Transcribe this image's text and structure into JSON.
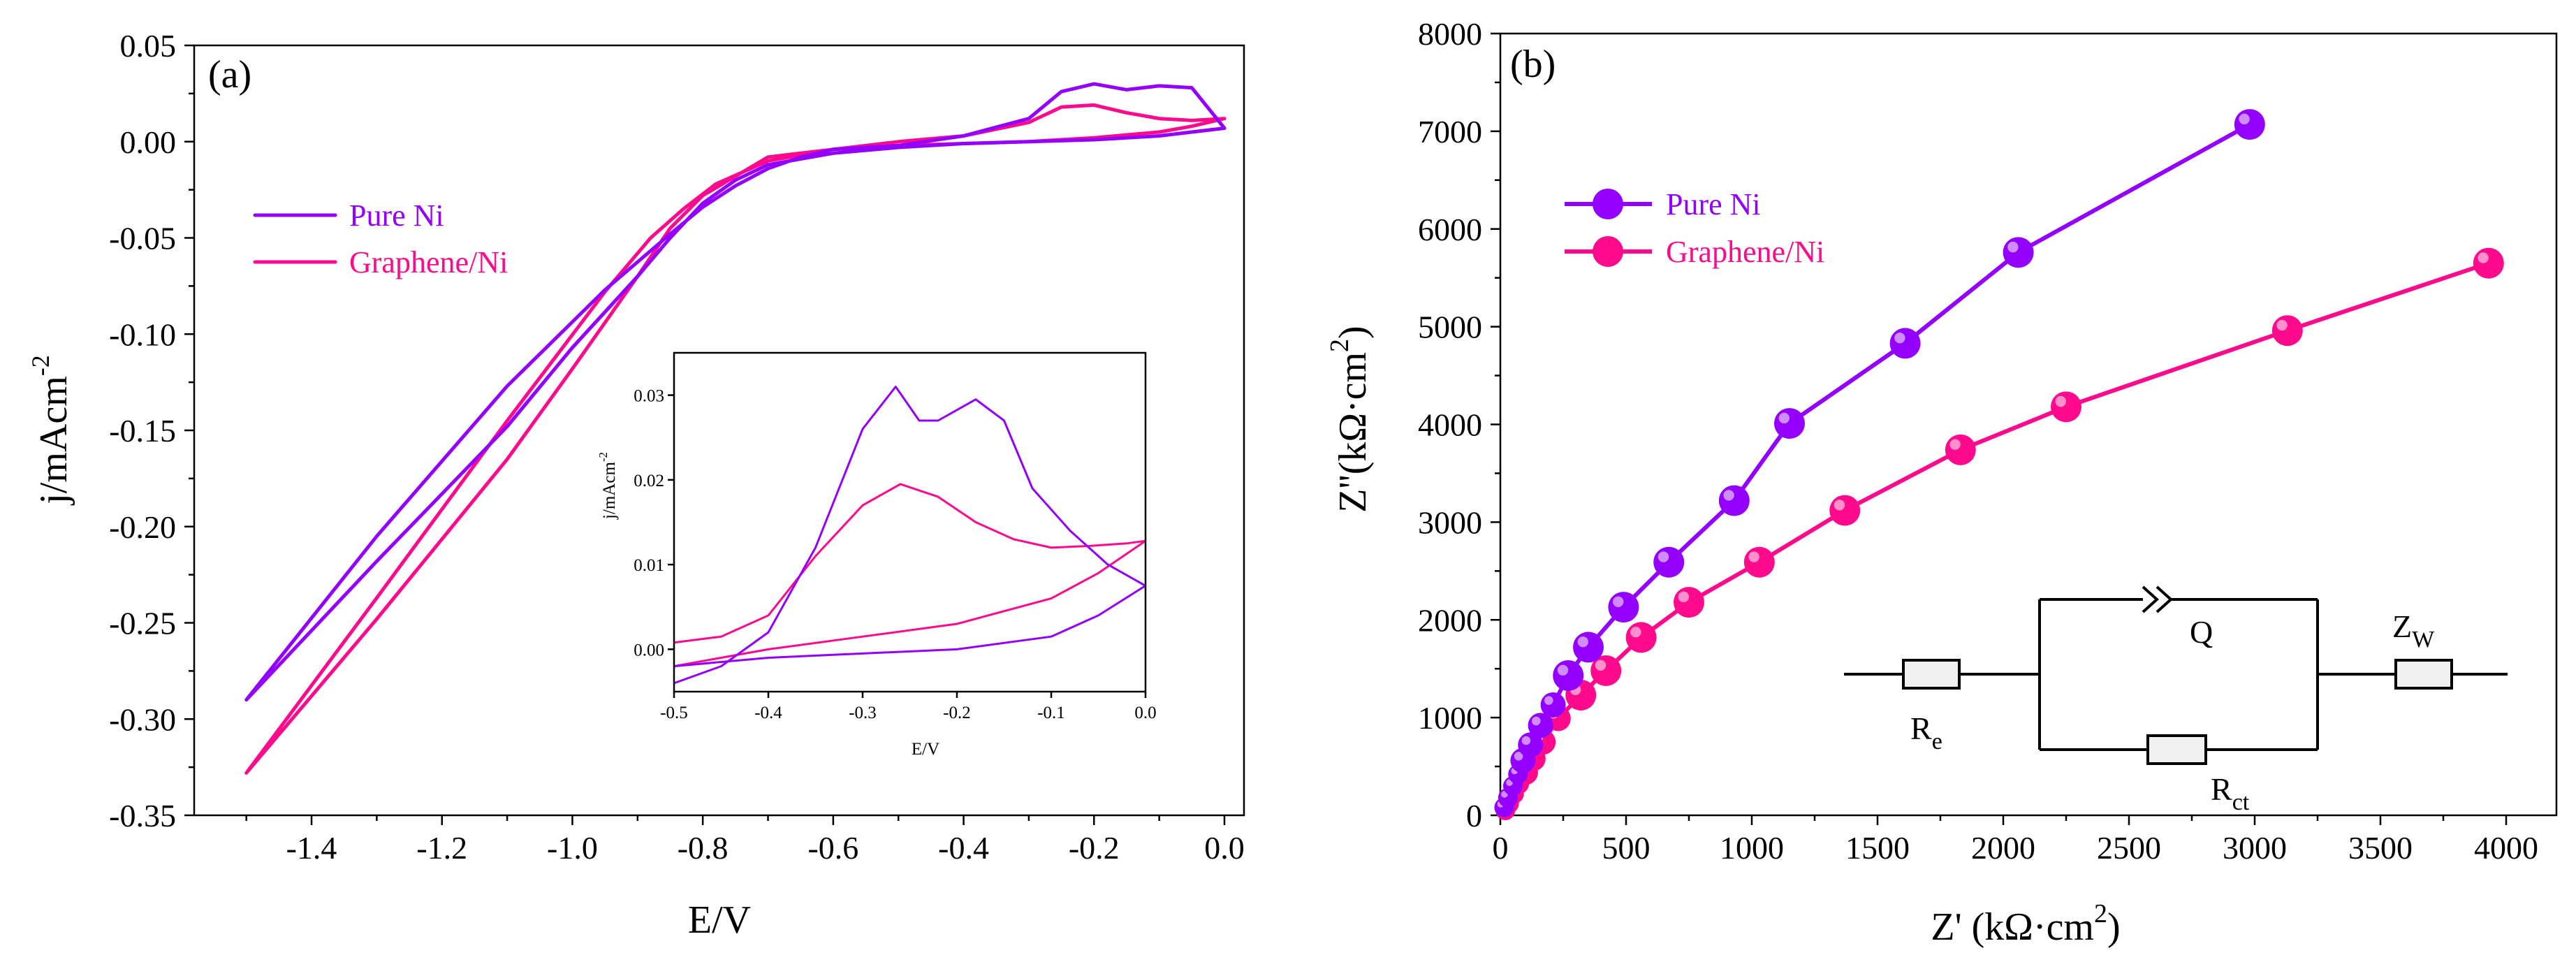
{
  "colors": {
    "pure_ni": "#9400ff",
    "graphene_ni": "#ff0a8c",
    "text": "#000000"
  },
  "chart_data": [
    {
      "panel_label": "(a)",
      "type": "line",
      "title": "",
      "xlabel": "E/V",
      "ylabel": "j/mAcm",
      "ylabel_exp": "-2",
      "xlim": [
        -1.58,
        0.03
      ],
      "ylim": [
        -0.35,
        0.05
      ],
      "xticks": [
        -1.4,
        -1.2,
        -1.0,
        -0.8,
        -0.6,
        -0.4,
        -0.2,
        0.0
      ],
      "xtick_labels": [
        "-1.4",
        "-1.2",
        "-1.0",
        "-0.8",
        "-0.6",
        "-0.4",
        "-0.2",
        "0.0"
      ],
      "yticks": [
        0.05,
        0.0,
        -0.05,
        -0.1,
        -0.15,
        -0.2,
        -0.25,
        -0.3,
        -0.35
      ],
      "ytick_labels": [
        "0.05",
        "0.00",
        "-0.05",
        "-0.10",
        "-0.15",
        "-0.20",
        "-0.25",
        "-0.30",
        "-0.35"
      ],
      "legend": [
        "Pure Ni",
        "Graphene/Ni"
      ],
      "legend_position": "upper-left",
      "series": [
        {
          "name": "Pure Ni",
          "color": "#9400ff",
          "x": [
            -1.5,
            -1.3,
            -1.1,
            -0.95,
            -0.85,
            -0.8,
            -0.75,
            -0.7,
            -0.65,
            -0.6,
            -0.5,
            -0.4,
            -0.3,
            -0.25,
            -0.2,
            -0.15,
            -0.1,
            -0.05,
            0.0,
            -0.05,
            -0.1,
            -0.2,
            -0.3,
            -0.4,
            -0.5,
            -0.6,
            -0.7,
            -0.75,
            -0.8,
            -0.85,
            -0.9,
            -1.0,
            -1.1,
            -1.3,
            -1.5
          ],
          "y": [
            -0.29,
            -0.205,
            -0.127,
            -0.077,
            -0.048,
            -0.034,
            -0.023,
            -0.014,
            -0.008,
            -0.004,
            -0.002,
            0.003,
            0.012,
            0.026,
            0.03,
            0.027,
            0.029,
            0.028,
            0.007,
            0.005,
            0.003,
            0.001,
            0.0,
            -0.001,
            -0.003,
            -0.006,
            -0.012,
            -0.02,
            -0.032,
            -0.05,
            -0.07,
            -0.107,
            -0.148,
            -0.218,
            -0.29
          ]
        },
        {
          "name": "Graphene/Ni",
          "color": "#ff0a8c",
          "x": [
            -1.5,
            -1.3,
            -1.1,
            -0.95,
            -0.88,
            -0.83,
            -0.78,
            -0.7,
            -0.6,
            -0.5,
            -0.4,
            -0.3,
            -0.25,
            -0.2,
            -0.15,
            -0.1,
            -0.05,
            0.0,
            -0.05,
            -0.1,
            -0.2,
            -0.3,
            -0.4,
            -0.5,
            -0.6,
            -0.7,
            -0.8,
            -0.85,
            -0.9,
            -1.0,
            -1.1,
            -1.3,
            -1.5
          ],
          "y": [
            -0.328,
            -0.237,
            -0.145,
            -0.078,
            -0.05,
            -0.035,
            -0.022,
            -0.01,
            -0.004,
            0.0,
            0.003,
            0.01,
            0.018,
            0.019,
            0.015,
            0.012,
            0.011,
            0.012,
            0.008,
            0.005,
            0.002,
            0.0,
            -0.001,
            -0.002,
            -0.004,
            -0.008,
            -0.028,
            -0.045,
            -0.07,
            -0.118,
            -0.165,
            -0.248,
            -0.328
          ]
        }
      ],
      "inset": {
        "xlabel": "E/V",
        "ylabel": "j/mAcm",
        "ylabel_exp": "-2",
        "xlim": [
          -0.5,
          0.0
        ],
        "ylim": [
          -0.005,
          0.035
        ],
        "xticks": [
          -0.5,
          -0.4,
          -0.3,
          -0.2,
          -0.1,
          0.0
        ],
        "xtick_labels": [
          "-0.5",
          "-0.4",
          "-0.3",
          "-0.2",
          "-0.1",
          "0.0"
        ],
        "yticks": [
          0.0,
          0.01,
          0.02,
          0.03
        ],
        "ytick_labels": [
          "0.00",
          "0.01",
          "0.02",
          "0.03"
        ],
        "series": [
          {
            "name": "Pure Ni",
            "color": "#9400ff",
            "x": [
              -0.5,
              -0.45,
              -0.4,
              -0.35,
              -0.3,
              -0.265,
              -0.24,
              -0.22,
              -0.18,
              -0.15,
              -0.12,
              -0.08,
              -0.04,
              0.0,
              -0.05,
              -0.1,
              -0.2,
              -0.3,
              -0.4,
              -0.5
            ],
            "y": [
              -0.004,
              -0.002,
              0.002,
              0.012,
              0.026,
              0.031,
              0.027,
              0.027,
              0.0295,
              0.027,
              0.019,
              0.014,
              0.01,
              0.0075,
              0.004,
              0.0015,
              0.0,
              -0.0005,
              -0.001,
              -0.002
            ]
          },
          {
            "name": "Graphene/Ni",
            "color": "#ff0a8c",
            "x": [
              -0.5,
              -0.45,
              -0.4,
              -0.35,
              -0.3,
              -0.26,
              -0.22,
              -0.18,
              -0.14,
              -0.1,
              -0.06,
              -0.02,
              0.0,
              -0.05,
              -0.1,
              -0.2,
              -0.3,
              -0.4,
              -0.5
            ],
            "y": [
              0.0008,
              0.0015,
              0.004,
              0.011,
              0.017,
              0.0195,
              0.018,
              0.015,
              0.013,
              0.012,
              0.0122,
              0.0125,
              0.0128,
              0.009,
              0.006,
              0.003,
              0.0015,
              0.0,
              -0.002
            ]
          }
        ]
      }
    },
    {
      "panel_label": "(b)",
      "type": "scatter",
      "title": "",
      "xlabel": "Z' (kΩ·cm",
      "xlabel_exp": "2",
      "xlabel_end": ")",
      "ylabel": "Z''(kΩ·cm",
      "ylabel_exp": "2",
      "ylabel_end": ")",
      "xlim": [
        0,
        4200
      ],
      "ylim": [
        0,
        8000
      ],
      "xticks": [
        0,
        500,
        1000,
        1500,
        2000,
        2500,
        3000,
        3500,
        4000
      ],
      "xtick_labels": [
        "0",
        "500",
        "1000",
        "1500",
        "2000",
        "2500",
        "3000",
        "3500",
        "4000"
      ],
      "yticks": [
        0,
        1000,
        2000,
        3000,
        4000,
        5000,
        6000,
        7000,
        8000
      ],
      "ytick_labels": [
        "0",
        "1000",
        "2000",
        "3000",
        "4000",
        "5000",
        "6000",
        "7000",
        "8000"
      ],
      "legend": [
        "Pure Ni",
        "Graphene/Ni"
      ],
      "legend_position": "upper-left",
      "series": [
        {
          "name": "Pure Ni",
          "color": "#9400ff",
          "x": [
            15,
            30,
            50,
            70,
            90,
            120,
            160,
            210,
            270,
            350,
            490,
            670,
            930,
            1150,
            1610,
            2060,
            2980
          ],
          "y": [
            80,
            180,
            300,
            420,
            560,
            720,
            920,
            1130,
            1430,
            1720,
            2130,
            2590,
            3220,
            4010,
            4830,
            5760,
            7070
          ]
        },
        {
          "name": "Graphene/Ni",
          "color": "#ff0a8c",
          "x": [
            20,
            35,
            55,
            75,
            100,
            130,
            170,
            230,
            320,
            420,
            560,
            750,
            1030,
            1370,
            1830,
            2250,
            3130,
            3930
          ],
          "y": [
            50,
            120,
            220,
            320,
            440,
            580,
            750,
            990,
            1230,
            1480,
            1820,
            2180,
            2590,
            3120,
            3740,
            4180,
            4960,
            5650
          ]
        }
      ],
      "circuit": {
        "elements": [
          "R",
          "Q",
          "R",
          "Z"
        ],
        "labels": [
          {
            "base": "R",
            "sub": "e"
          },
          {
            "base": "Q",
            "sub": ""
          },
          {
            "base": "R",
            "sub": "ct"
          },
          {
            "base": "Z",
            "sub": "W"
          }
        ]
      }
    }
  ]
}
